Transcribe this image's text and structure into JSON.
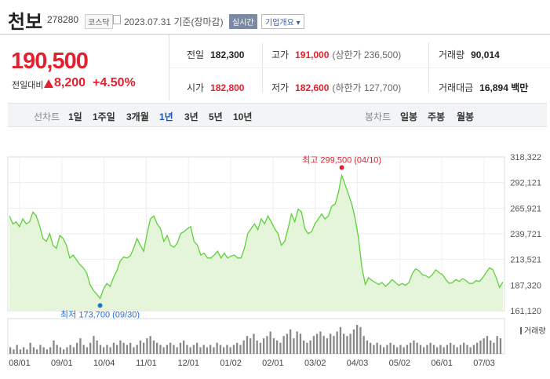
{
  "header": {
    "name": "천보",
    "code": "278280",
    "market": "코스닥",
    "date": "2023.07.31 기준(장마감)",
    "realtime": "실시간",
    "overview": "기업개요 ▾"
  },
  "quote": {
    "price": "190,500",
    "change_label": "전일대비",
    "change": "8,200",
    "change_pct": "+4.50%",
    "direction": "up"
  },
  "info": {
    "prev_label": "전일",
    "prev": "182,300",
    "high_label": "고가",
    "high": "191,000",
    "high_limit": "(상한가 236,500)",
    "volume_label": "거래량",
    "volume": "90,014",
    "open_label": "시가",
    "open": "182,800",
    "low_label": "저가",
    "low": "182,600",
    "low_limit": "(하한가 127,700)",
    "amount_label": "거래대금",
    "amount": "16,894 백만"
  },
  "tabs": {
    "line_label": "선차트",
    "line_periods": [
      "1일",
      "1주일",
      "3개월",
      "1년",
      "3년",
      "5년",
      "10년"
    ],
    "active_period": "1년",
    "candle_label": "봉차트",
    "candle_periods": [
      "일봉",
      "주봉",
      "월봉"
    ]
  },
  "chart_data": {
    "type": "area",
    "y_ticks": [
      "318,322",
      "292,121",
      "265,921",
      "239,721",
      "213,521",
      "187,320",
      "161,120"
    ],
    "ylim": [
      161120,
      318322
    ],
    "x_ticks": [
      "08/01",
      "09/01",
      "10/04",
      "11/01",
      "12/01",
      "01/02",
      "02/01",
      "03/02",
      "04/03",
      "05/02",
      "06/01",
      "07/03"
    ],
    "max_annotation": "최고 299,500 (04/10)",
    "min_annotation": "최저 173,700 (09/30)",
    "max_value": 299500,
    "min_value": 173700,
    "volume_label": "거래량",
    "colors": {
      "line": "#5fcf3b",
      "fill": "#e4f5da",
      "max": "#e4202e",
      "min": "#1e6fd9",
      "volume": "#888888"
    },
    "values": [
      258000,
      250000,
      252000,
      247000,
      255000,
      250000,
      252000,
      262000,
      258000,
      248000,
      235000,
      232000,
      240000,
      228000,
      225000,
      238000,
      235000,
      228000,
      215000,
      218000,
      213000,
      208000,
      205000,
      200000,
      188000,
      182000,
      178000,
      173700,
      183000,
      189000,
      186000,
      195000,
      202000,
      212000,
      216000,
      215000,
      217000,
      225000,
      235000,
      228000,
      222000,
      240000,
      255000,
      258000,
      250000,
      245000,
      232000,
      238000,
      228000,
      226000,
      230000,
      240000,
      242000,
      245000,
      247000,
      232000,
      228000,
      218000,
      220000,
      215000,
      215000,
      218000,
      222000,
      215000,
      220000,
      215000,
      217000,
      218000,
      215000,
      215000,
      225000,
      240000,
      245000,
      250000,
      244000,
      255000,
      250000,
      258000,
      252000,
      245000,
      240000,
      228000,
      232000,
      245000,
      260000,
      252000,
      265000,
      262000,
      245000,
      240000,
      242000,
      250000,
      255000,
      260000,
      255000,
      258000,
      268000,
      270000,
      282000,
      299500,
      290000,
      280000,
      270000,
      255000,
      235000,
      205000,
      188000,
      195000,
      192000,
      190000,
      188000,
      190000,
      186000,
      189000,
      193000,
      190000,
      187000,
      189000,
      187000,
      190000,
      199000,
      204000,
      202000,
      198000,
      197000,
      195000,
      198000,
      203000,
      200000,
      198000,
      193000,
      189000,
      190000,
      193000,
      191000,
      194000,
      192000,
      189000,
      189000,
      192000,
      191000,
      195000,
      200000,
      205000,
      203000,
      195000,
      185000,
      190500
    ],
    "volumes": [
      3,
      2,
      4,
      2,
      3,
      2,
      5,
      3,
      2,
      4,
      3,
      2,
      3,
      6,
      4,
      3,
      2,
      3,
      4,
      3,
      5,
      7,
      4,
      3,
      5,
      8,
      6,
      4,
      3,
      4,
      3,
      5,
      4,
      6,
      5,
      4,
      5,
      3,
      4,
      6,
      5,
      7,
      8,
      6,
      5,
      4,
      3,
      4,
      5,
      4,
      3,
      5,
      6,
      4,
      3,
      4,
      5,
      3,
      4,
      3,
      4,
      3,
      5,
      4,
      3,
      4,
      3,
      4,
      5,
      4,
      6,
      8,
      7,
      9,
      6,
      5,
      7,
      8,
      10,
      7,
      6,
      5,
      8,
      9,
      11,
      7,
      10,
      9,
      6,
      5,
      6,
      8,
      9,
      10,
      8,
      7,
      9,
      8,
      10,
      12,
      9,
      8,
      9,
      11,
      13,
      12,
      8,
      6,
      5,
      4,
      5,
      4,
      3,
      4,
      5,
      4,
      3,
      4,
      3,
      4,
      5,
      6,
      5,
      4,
      3,
      4,
      5,
      4,
      3,
      4,
      3,
      4,
      5,
      4,
      3,
      4,
      5,
      4,
      3,
      4,
      5,
      6,
      7,
      8,
      6,
      5,
      8,
      7
    ]
  }
}
